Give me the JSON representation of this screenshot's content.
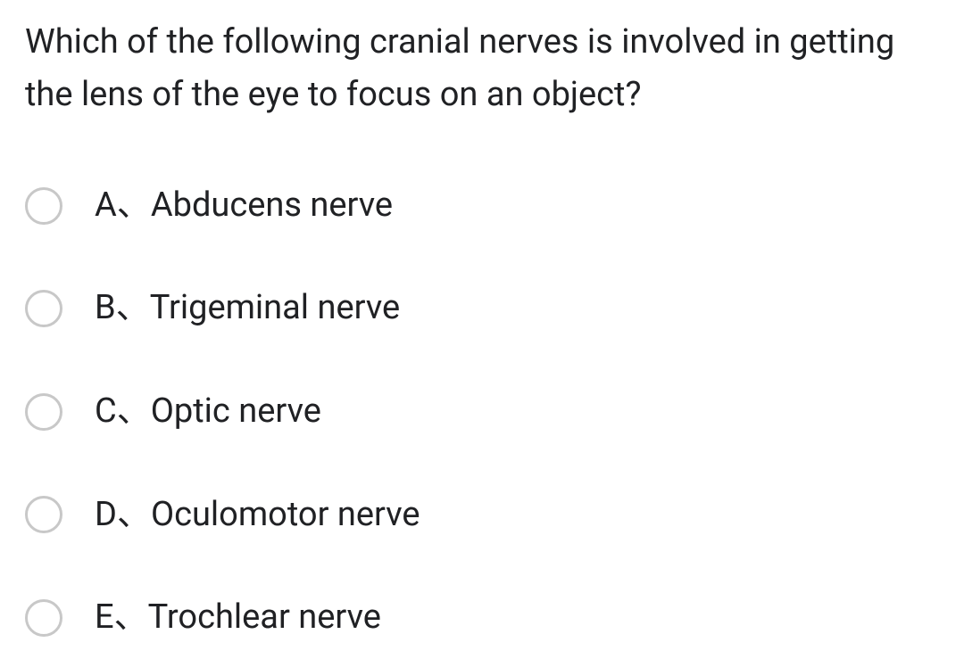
{
  "question": {
    "text": "Which of the following cranial nerves is involved in getting the lens of the eye to focus on an object?"
  },
  "options": [
    {
      "letter": "A",
      "separator": "、",
      "label": "Abducens nerve"
    },
    {
      "letter": "B",
      "separator": "、",
      "label": "Trigeminal nerve"
    },
    {
      "letter": "C",
      "separator": "、",
      "label": "Optic nerve"
    },
    {
      "letter": "D",
      "separator": "、",
      "label": "Oculomotor nerve"
    },
    {
      "letter": "E",
      "separator": "、",
      "label": "Trochlear nerve"
    }
  ],
  "styling": {
    "background_color": "#ffffff",
    "text_color": "#202124",
    "radio_border_color": "#c8c8c8",
    "question_fontsize": 38,
    "option_fontsize": 38,
    "radio_size": 42,
    "option_gap": 70
  }
}
